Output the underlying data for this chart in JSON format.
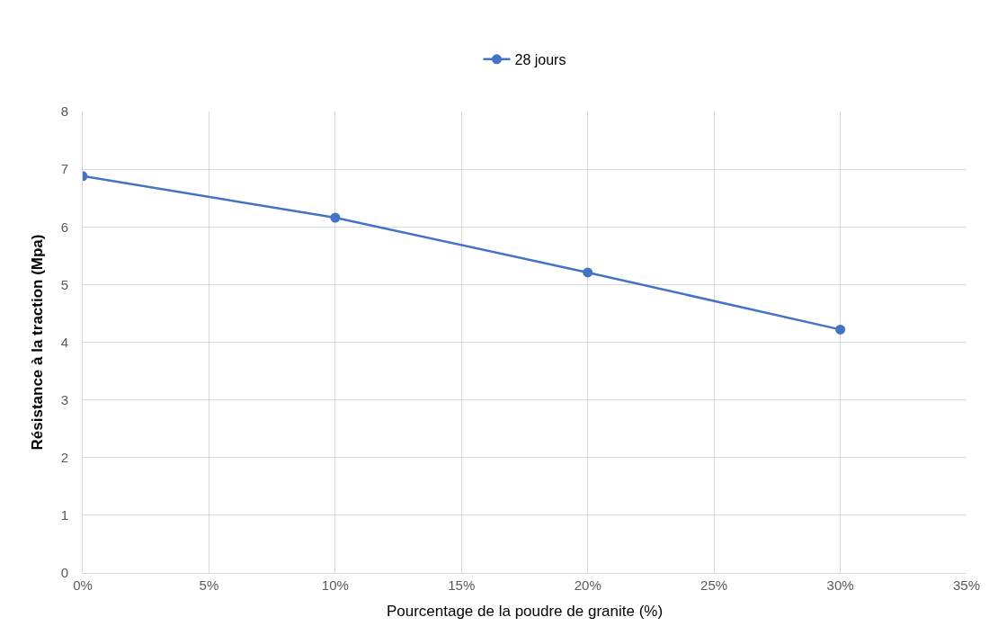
{
  "chart_data": {
    "type": "line",
    "xlabel": "Pourcentage de la poudre de granite (%)",
    "ylabel": "Résistance à la traction (Mpa)",
    "x": [
      0,
      10,
      20,
      30
    ],
    "series": [
      {
        "name": "28 jours",
        "color": "#4472c4",
        "values": [
          6.88,
          6.16,
          5.21,
          4.22
        ]
      }
    ],
    "xlim": [
      0,
      35
    ],
    "xticks": [
      {
        "value": 0,
        "label": "0%"
      },
      {
        "value": 5,
        "label": "5%"
      },
      {
        "value": 10,
        "label": "10%"
      },
      {
        "value": 15,
        "label": "15%"
      },
      {
        "value": 20,
        "label": "20%"
      },
      {
        "value": 25,
        "label": "25%"
      },
      {
        "value": 30,
        "label": "30%"
      },
      {
        "value": 35,
        "label": "35%"
      }
    ],
    "ylim": [
      0,
      8
    ],
    "yticks": [
      0,
      1,
      2,
      3,
      4,
      5,
      6,
      7,
      8
    ],
    "grid": true,
    "legend": "top",
    "marker": "circle",
    "line_style": "solid"
  }
}
